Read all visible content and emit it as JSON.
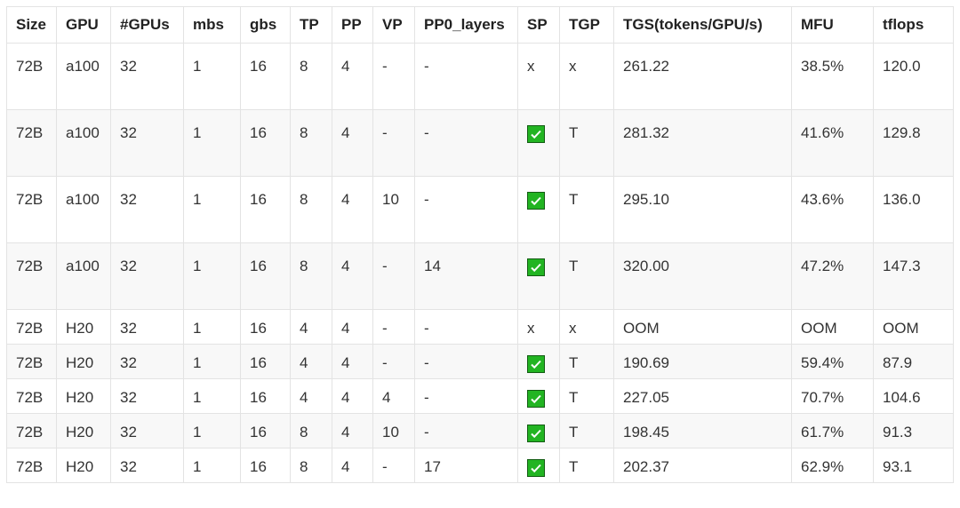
{
  "table": {
    "headers": [
      "Size",
      "GPU",
      "#GPUs",
      "mbs",
      "gbs",
      "TP",
      "PP",
      "VP",
      "PP0_layers",
      "SP",
      "TGP",
      "TGS(tokens/GPU/s)",
      "MFU",
      "tflops"
    ],
    "rows": [
      [
        "72B",
        "a100",
        "32",
        "1",
        "16",
        "8",
        "4",
        "-",
        "-",
        "x",
        "x",
        "261.22",
        "38.5%",
        "120.0"
      ],
      [
        "72B",
        "a100",
        "32",
        "1",
        "16",
        "8",
        "4",
        "-",
        "-",
        "check",
        "T",
        "281.32",
        "41.6%",
        "129.8"
      ],
      [
        "72B",
        "a100",
        "32",
        "1",
        "16",
        "8",
        "4",
        "10",
        "-",
        "check",
        "T",
        "295.10",
        "43.6%",
        "136.0"
      ],
      [
        "72B",
        "a100",
        "32",
        "1",
        "16",
        "8",
        "4",
        "-",
        "14",
        "check",
        "T",
        "320.00",
        "47.2%",
        "147.3"
      ],
      [
        "72B",
        "H20",
        "32",
        "1",
        "16",
        "4",
        "4",
        "-",
        "-",
        "x",
        "x",
        "OOM",
        "OOM",
        "OOM"
      ],
      [
        "72B",
        "H20",
        "32",
        "1",
        "16",
        "4",
        "4",
        "-",
        "-",
        "check",
        "T",
        "190.69",
        "59.4%",
        "87.9"
      ],
      [
        "72B",
        "H20",
        "32",
        "1",
        "16",
        "4",
        "4",
        "4",
        "-",
        "check",
        "T",
        "227.05",
        "70.7%",
        "104.6"
      ],
      [
        "72B",
        "H20",
        "32",
        "1",
        "16",
        "8",
        "4",
        "10",
        "-",
        "check",
        "T",
        "198.45",
        "61.7%",
        "91.3"
      ],
      [
        "72B",
        "H20",
        "32",
        "1",
        "16",
        "8",
        "4",
        "-",
        "17",
        "check",
        "T",
        "202.37",
        "62.9%",
        "93.1"
      ]
    ],
    "check_icon": "green-checkbox-icon",
    "check_color": "#22b422"
  }
}
